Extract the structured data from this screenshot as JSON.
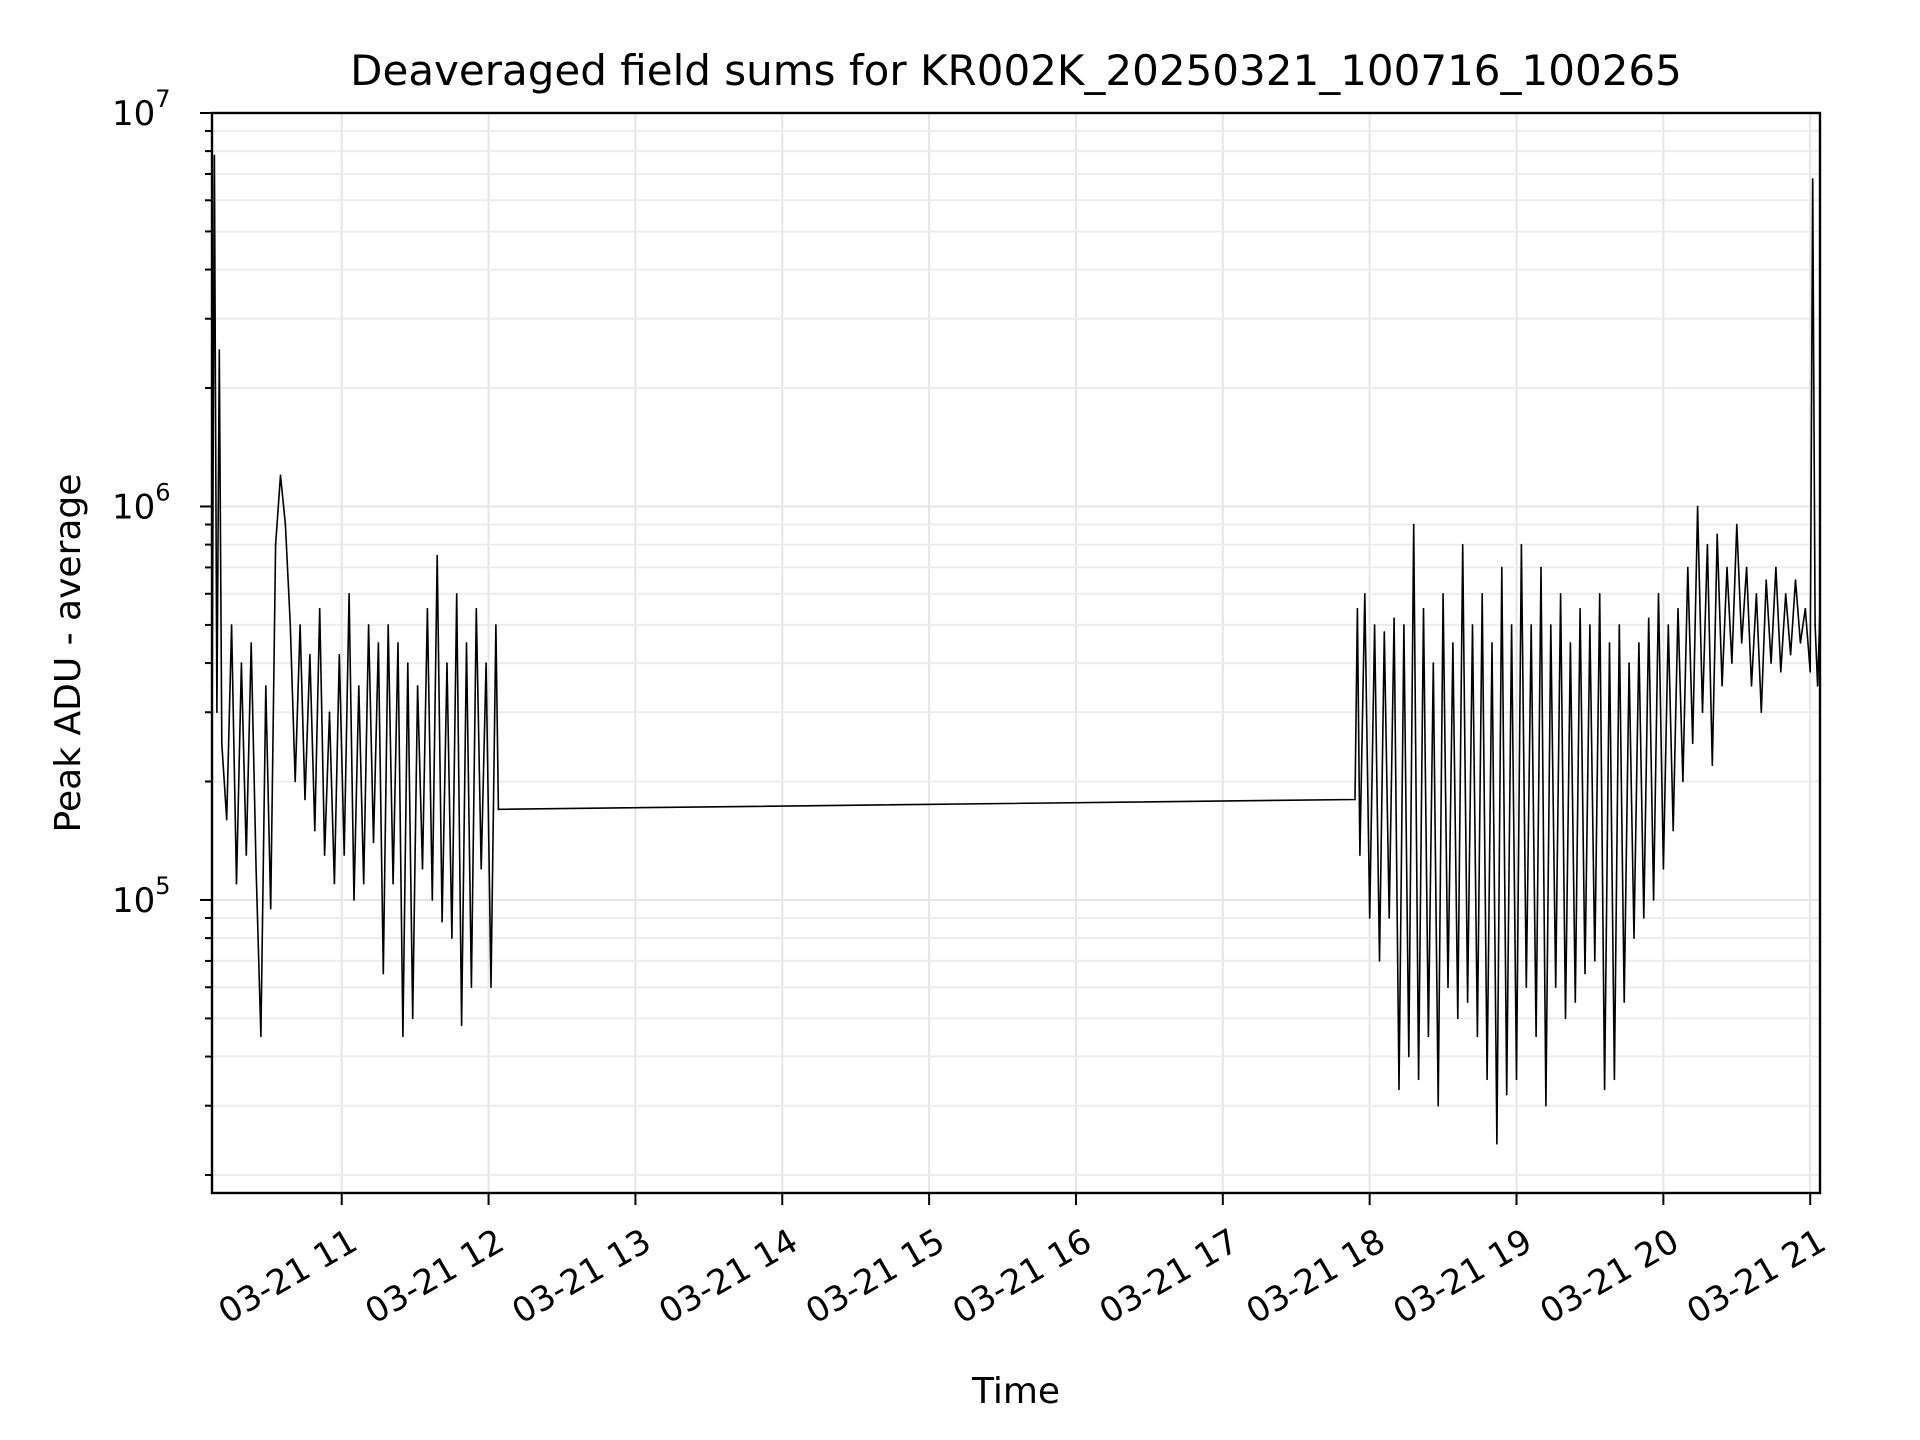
{
  "chart_data": {
    "type": "line",
    "title": "Deaveraged field sums for KR002K_20250321_100716_100265",
    "xlabel": "Time",
    "ylabel": "Peak ADU - average",
    "x_unit": "hours (2025-03-21)",
    "xlim": [
      "03-21 10:07",
      "03-21 21:04"
    ],
    "ylim": [
      18000,
      10000000
    ],
    "yscale": "log",
    "grid": true,
    "line_color": "#000000",
    "x_ticks": [
      "03-21 11",
      "03-21 12",
      "03-21 13",
      "03-21 14",
      "03-21 15",
      "03-21 16",
      "03-21 17",
      "03-21 18",
      "03-21 19",
      "03-21 20",
      "03-21 21"
    ],
    "y_ticks": [
      {
        "base": "10",
        "exp": "5",
        "value": 100000
      },
      {
        "base": "10",
        "exp": "6",
        "value": 1000000
      },
      {
        "base": "10",
        "exp": "7",
        "value": 10000000
      }
    ],
    "series": [
      {
        "segments": [
          {
            "start": "03-21 10:07",
            "end": "03-21 12:04",
            "points": [
              [
                "10:07",
                250000
              ],
              [
                "10:08",
                7800000
              ],
              [
                "10:09",
                300000
              ],
              [
                "10:10",
                2500000
              ],
              [
                "10:11",
                250000
              ],
              [
                "10:13",
                160000
              ],
              [
                "10:15",
                500000
              ],
              [
                "10:17",
                110000
              ],
              [
                "10:19",
                400000
              ],
              [
                "10:21",
                130000
              ],
              [
                "10:23",
                450000
              ],
              [
                "10:25",
                120000
              ],
              [
                "10:27",
                45000
              ],
              [
                "10:29",
                350000
              ],
              [
                "10:31",
                95000
              ],
              [
                "10:33",
                800000
              ],
              [
                "10:35",
                1200000
              ],
              [
                "10:37",
                900000
              ],
              [
                "10:39",
                500000
              ],
              [
                "10:41",
                200000
              ],
              [
                "10:43",
                500000
              ],
              [
                "10:45",
                180000
              ],
              [
                "10:47",
                420000
              ],
              [
                "10:49",
                150000
              ],
              [
                "10:51",
                550000
              ],
              [
                "10:53",
                130000
              ],
              [
                "10:55",
                300000
              ],
              [
                "10:57",
                110000
              ],
              [
                "10:59",
                420000
              ],
              [
                "11:01",
                130000
              ],
              [
                "11:03",
                600000
              ],
              [
                "11:05",
                100000
              ],
              [
                "11:07",
                350000
              ],
              [
                "11:09",
                110000
              ],
              [
                "11:11",
                500000
              ],
              [
                "11:13",
                140000
              ],
              [
                "11:15",
                450000
              ],
              [
                "11:17",
                65000
              ],
              [
                "11:19",
                500000
              ],
              [
                "11:21",
                110000
              ],
              [
                "11:23",
                450000
              ],
              [
                "11:25",
                45000
              ],
              [
                "11:27",
                400000
              ],
              [
                "11:29",
                50000
              ],
              [
                "11:31",
                350000
              ],
              [
                "11:33",
                120000
              ],
              [
                "11:35",
                550000
              ],
              [
                "11:37",
                100000
              ],
              [
                "11:39",
                750000
              ],
              [
                "11:41",
                88000
              ],
              [
                "11:43",
                400000
              ],
              [
                "11:45",
                80000
              ],
              [
                "11:47",
                600000
              ],
              [
                "11:49",
                48000
              ],
              [
                "11:51",
                450000
              ],
              [
                "11:53",
                60000
              ],
              [
                "11:55",
                550000
              ],
              [
                "11:57",
                120000
              ],
              [
                "11:59",
                400000
              ],
              [
                "12:01",
                60000
              ],
              [
                "12:03",
                500000
              ],
              [
                "12:04",
                170000
              ]
            ]
          },
          {
            "start": "03-21 17:54",
            "end": "03-21 21:04",
            "points": [
              [
                "17:54",
                180000
              ],
              [
                "17:55",
                550000
              ],
              [
                "17:56",
                130000
              ],
              [
                "17:58",
                600000
              ],
              [
                "18:00",
                90000
              ],
              [
                "18:02",
                500000
              ],
              [
                "18:04",
                70000
              ],
              [
                "18:06",
                480000
              ],
              [
                "18:08",
                90000
              ],
              [
                "18:10",
                520000
              ],
              [
                "18:12",
                33000
              ],
              [
                "18:14",
                500000
              ],
              [
                "18:16",
                40000
              ],
              [
                "18:18",
                900000
              ],
              [
                "18:20",
                35000
              ],
              [
                "18:22",
                550000
              ],
              [
                "18:24",
                45000
              ],
              [
                "18:26",
                400000
              ],
              [
                "18:28",
                30000
              ],
              [
                "18:30",
                600000
              ],
              [
                "18:32",
                60000
              ],
              [
                "18:34",
                450000
              ],
              [
                "18:36",
                50000
              ],
              [
                "18:38",
                800000
              ],
              [
                "18:40",
                55000
              ],
              [
                "18:42",
                500000
              ],
              [
                "18:44",
                45000
              ],
              [
                "18:46",
                600000
              ],
              [
                "18:48",
                35000
              ],
              [
                "18:50",
                450000
              ],
              [
                "18:52",
                24000
              ],
              [
                "18:54",
                700000
              ],
              [
                "18:56",
                32000
              ],
              [
                "18:58",
                500000
              ],
              [
                "19:00",
                35000
              ],
              [
                "19:02",
                800000
              ],
              [
                "19:04",
                60000
              ],
              [
                "19:06",
                500000
              ],
              [
                "19:08",
                45000
              ],
              [
                "19:10",
                700000
              ],
              [
                "19:12",
                30000
              ],
              [
                "19:14",
                500000
              ],
              [
                "19:16",
                60000
              ],
              [
                "19:18",
                600000
              ],
              [
                "19:20",
                50000
              ],
              [
                "19:22",
                450000
              ],
              [
                "19:24",
                55000
              ],
              [
                "19:26",
                550000
              ],
              [
                "19:28",
                65000
              ],
              [
                "19:30",
                500000
              ],
              [
                "19:32",
                70000
              ],
              [
                "19:34",
                600000
              ],
              [
                "19:36",
                33000
              ],
              [
                "19:38",
                450000
              ],
              [
                "19:40",
                35000
              ],
              [
                "19:42",
                500000
              ],
              [
                "19:44",
                55000
              ],
              [
                "19:46",
                400000
              ],
              [
                "19:48",
                80000
              ],
              [
                "19:50",
                450000
              ],
              [
                "19:52",
                90000
              ],
              [
                "19:54",
                520000
              ],
              [
                "19:56",
                100000
              ],
              [
                "19:58",
                600000
              ],
              [
                "20:00",
                120000
              ],
              [
                "20:02",
                500000
              ],
              [
                "20:04",
                150000
              ],
              [
                "20:06",
                550000
              ],
              [
                "20:08",
                200000
              ],
              [
                "20:10",
                700000
              ],
              [
                "20:12",
                250000
              ],
              [
                "20:14",
                1000000
              ],
              [
                "20:16",
                300000
              ],
              [
                "20:18",
                800000
              ],
              [
                "20:20",
                220000
              ],
              [
                "20:22",
                850000
              ],
              [
                "20:24",
                350000
              ],
              [
                "20:26",
                700000
              ],
              [
                "20:28",
                400000
              ],
              [
                "20:30",
                900000
              ],
              [
                "20:32",
                450000
              ],
              [
                "20:34",
                700000
              ],
              [
                "20:36",
                350000
              ],
              [
                "20:38",
                600000
              ],
              [
                "20:40",
                300000
              ],
              [
                "20:42",
                650000
              ],
              [
                "20:44",
                400000
              ],
              [
                "20:46",
                700000
              ],
              [
                "20:48",
                380000
              ],
              [
                "20:50",
                600000
              ],
              [
                "20:52",
                420000
              ],
              [
                "20:54",
                650000
              ],
              [
                "20:56",
                450000
              ],
              [
                "20:58",
                550000
              ],
              [
                "21:00",
                380000
              ],
              [
                "21:01",
                6800000
              ],
              [
                "21:02",
                500000
              ],
              [
                "21:03",
                350000
              ],
              [
                "21:04",
                550000
              ]
            ]
          }
        ]
      }
    ]
  }
}
